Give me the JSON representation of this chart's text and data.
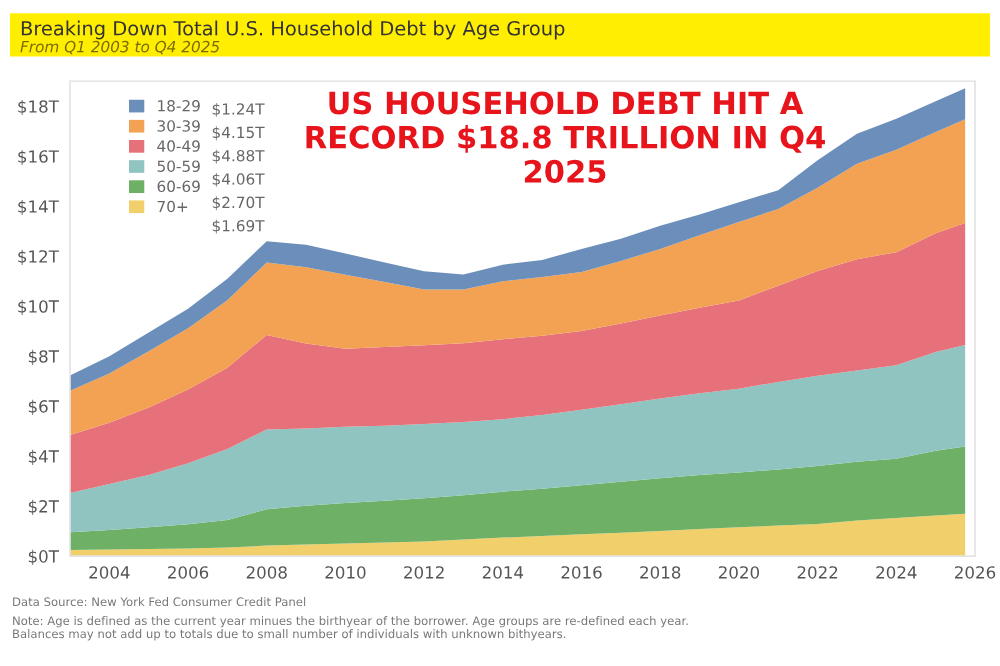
{
  "chart_data": {
    "type": "area",
    "stacked": true,
    "title": "Breaking Down Total U.S. Household Debt by Age Group",
    "subtitle": "From Q1 2003 to Q4 2025",
    "x": [
      2003,
      2004,
      2005,
      2006,
      2007,
      2008,
      2009,
      2010,
      2011,
      2012,
      2013,
      2014,
      2015,
      2016,
      2017,
      2018,
      2019,
      2020,
      2021,
      2022,
      2023,
      2024,
      2025,
      2025.75
    ],
    "series": [
      {
        "name": "70+",
        "color": "#f1d06b",
        "values": [
          0.24,
          0.26,
          0.28,
          0.3,
          0.34,
          0.42,
          0.46,
          0.5,
          0.54,
          0.58,
          0.66,
          0.74,
          0.8,
          0.87,
          0.93,
          1.0,
          1.08,
          1.15,
          1.22,
          1.28,
          1.42,
          1.52,
          1.62,
          1.69
        ]
      },
      {
        "name": "60-69",
        "color": "#6fb067",
        "values": [
          0.71,
          0.78,
          0.87,
          0.97,
          1.1,
          1.45,
          1.55,
          1.63,
          1.68,
          1.74,
          1.78,
          1.84,
          1.9,
          1.97,
          2.05,
          2.12,
          2.17,
          2.2,
          2.25,
          2.33,
          2.36,
          2.38,
          2.6,
          2.7
        ]
      },
      {
        "name": "50-59",
        "color": "#8fc4c0",
        "values": [
          1.58,
          1.85,
          2.1,
          2.45,
          2.85,
          3.2,
          3.1,
          3.05,
          3.0,
          2.97,
          2.93,
          2.9,
          2.95,
          3.02,
          3.1,
          3.19,
          3.27,
          3.35,
          3.5,
          3.61,
          3.65,
          3.74,
          3.95,
          4.06
        ]
      },
      {
        "name": "40-49",
        "color": "#e6717a",
        "values": [
          2.32,
          2.45,
          2.7,
          2.95,
          3.25,
          3.78,
          3.4,
          3.12,
          3.15,
          3.15,
          3.15,
          3.2,
          3.17,
          3.15,
          3.23,
          3.32,
          3.42,
          3.53,
          3.85,
          4.19,
          4.45,
          4.52,
          4.75,
          4.88
        ]
      },
      {
        "name": "30-39",
        "color": "#f2a252",
        "values": [
          1.77,
          1.97,
          2.25,
          2.45,
          2.7,
          2.9,
          3.05,
          2.96,
          2.6,
          2.23,
          2.15,
          2.32,
          2.35,
          2.36,
          2.5,
          2.66,
          2.9,
          3.14,
          3.07,
          3.33,
          3.82,
          4.1,
          4.05,
          4.15
        ]
      },
      {
        "name": "18-29",
        "color": "#6b8fba",
        "values": [
          0.61,
          0.69,
          0.75,
          0.78,
          0.86,
          0.85,
          0.9,
          0.85,
          0.78,
          0.73,
          0.6,
          0.66,
          0.68,
          0.92,
          0.89,
          0.93,
          0.83,
          0.79,
          0.75,
          1.1,
          1.2,
          1.24,
          1.23,
          1.24
        ]
      }
    ],
    "xlim": [
      2003,
      2026
    ],
    "xticks": [
      2004,
      2006,
      2008,
      2010,
      2012,
      2014,
      2016,
      2018,
      2020,
      2022,
      2024,
      2026
    ],
    "ylim": [
      0,
      19
    ],
    "yticks": [
      {
        "value": 0,
        "label": "$0T"
      },
      {
        "value": 2,
        "label": "$2T"
      },
      {
        "value": 4,
        "label": "$4T"
      },
      {
        "value": 6,
        "label": "$6T"
      },
      {
        "value": 8,
        "label": "$8T"
      },
      {
        "value": 10,
        "label": "$10T"
      },
      {
        "value": 12,
        "label": "$12T"
      },
      {
        "value": 14,
        "label": "$14T"
      },
      {
        "value": 16,
        "label": "$16T"
      },
      {
        "value": 18,
        "label": "$18T"
      }
    ],
    "grid": false,
    "legend": "top left",
    "annotations": [
      "US HOUSEHOLD DEBT HIT A RECORD $18.8 TRILLION IN Q4 2025",
      "Data Source: New York Fed Consumer Credit Panel",
      "Note: Age is defined as the current year minues the birthyear of the borrower. Age groups are re-defined each year. Balances may not add up to totals due to small number of individuals with unknown bithyears.",
      "$1.24T",
      "$4.15T",
      "$4.88T",
      "$4.06T",
      "$2.70T",
      "$1.69T"
    ]
  }
}
